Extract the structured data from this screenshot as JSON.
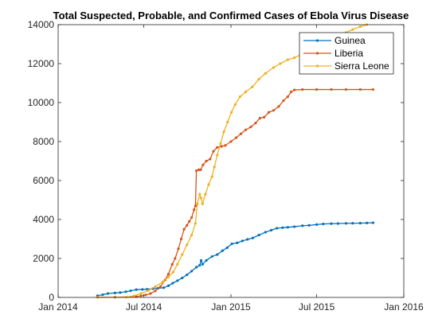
{
  "chart_data": {
    "type": "line",
    "title": "Total Suspected, Probable, and Confirmed Cases of Ebola Virus Disease",
    "xlabel": "",
    "ylabel": "",
    "x_range": [
      "2014-01-01",
      "2016-01-01"
    ],
    "ylim": [
      0,
      14000
    ],
    "x_ticks": [
      {
        "date": "2014-01-01",
        "label": "Jan 2014"
      },
      {
        "date": "2014-07-01",
        "label": "Jul 2014"
      },
      {
        "date": "2015-01-01",
        "label": "Jan 2015"
      },
      {
        "date": "2015-07-01",
        "label": "Jul 2015"
      },
      {
        "date": "2016-01-01",
        "label": "Jan 2016"
      }
    ],
    "y_ticks": [
      0,
      2000,
      4000,
      6000,
      8000,
      10000,
      12000,
      14000
    ],
    "grid": false,
    "legend_position": "top-right",
    "series": [
      {
        "name": "Guinea",
        "color": "#0072BD",
        "points": [
          [
            "2014-03-25",
            86
          ],
          [
            "2014-04-05",
            140
          ],
          [
            "2014-04-16",
            200
          ],
          [
            "2014-05-01",
            230
          ],
          [
            "2014-05-12",
            250
          ],
          [
            "2014-05-24",
            290
          ],
          [
            "2014-06-03",
            340
          ],
          [
            "2014-06-15",
            400
          ],
          [
            "2014-06-28",
            410
          ],
          [
            "2014-07-08",
            420
          ],
          [
            "2014-07-20",
            450
          ],
          [
            "2014-07-31",
            470
          ],
          [
            "2014-08-12",
            500
          ],
          [
            "2014-08-22",
            600
          ],
          [
            "2014-08-31",
            730
          ],
          [
            "2014-09-10",
            860
          ],
          [
            "2014-09-20",
            1000
          ],
          [
            "2014-09-30",
            1160
          ],
          [
            "2014-10-10",
            1350
          ],
          [
            "2014-10-20",
            1550
          ],
          [
            "2014-10-27",
            1650
          ],
          [
            "2014-10-30",
            1900
          ],
          [
            "2014-11-02",
            1700
          ],
          [
            "2014-11-10",
            1900
          ],
          [
            "2014-11-22",
            2100
          ],
          [
            "2014-12-03",
            2200
          ],
          [
            "2014-12-14",
            2400
          ],
          [
            "2014-12-24",
            2550
          ],
          [
            "2015-01-03",
            2750
          ],
          [
            "2015-01-14",
            2800
          ],
          [
            "2015-01-25",
            2900
          ],
          [
            "2015-02-05",
            2980
          ],
          [
            "2015-02-16",
            3050
          ],
          [
            "2015-03-01",
            3200
          ],
          [
            "2015-03-15",
            3350
          ],
          [
            "2015-03-27",
            3450
          ],
          [
            "2015-04-08",
            3550
          ],
          [
            "2015-04-20",
            3580
          ],
          [
            "2015-05-01",
            3600
          ],
          [
            "2015-05-15",
            3630
          ],
          [
            "2015-06-01",
            3680
          ],
          [
            "2015-06-15",
            3700
          ],
          [
            "2015-07-01",
            3740
          ],
          [
            "2015-07-15",
            3770
          ],
          [
            "2015-08-01",
            3785
          ],
          [
            "2015-08-15",
            3790
          ],
          [
            "2015-09-01",
            3800
          ],
          [
            "2015-09-15",
            3805
          ],
          [
            "2015-10-01",
            3810
          ],
          [
            "2015-10-15",
            3820
          ],
          [
            "2015-10-28",
            3830
          ]
        ]
      },
      {
        "name": "Liberia",
        "color": "#D95319",
        "points": [
          [
            "2014-03-25",
            8
          ],
          [
            "2014-05-01",
            10
          ],
          [
            "2014-06-15",
            40
          ],
          [
            "2014-06-25",
            80
          ],
          [
            "2014-07-05",
            130
          ],
          [
            "2014-07-15",
            200
          ],
          [
            "2014-07-25",
            330
          ],
          [
            "2014-08-05",
            550
          ],
          [
            "2014-08-15",
            900
          ],
          [
            "2014-08-22",
            1200
          ],
          [
            "2014-08-30",
            1700
          ],
          [
            "2014-09-05",
            2000
          ],
          [
            "2014-09-12",
            2500
          ],
          [
            "2014-09-18",
            3000
          ],
          [
            "2014-09-24",
            3500
          ],
          [
            "2014-09-30",
            3700
          ],
          [
            "2014-10-05",
            3900
          ],
          [
            "2014-10-10",
            4100
          ],
          [
            "2014-10-15",
            4500
          ],
          [
            "2014-10-18",
            4700
          ],
          [
            "2014-10-20",
            6500
          ],
          [
            "2014-10-25",
            6550
          ],
          [
            "2014-10-29",
            6550
          ],
          [
            "2014-11-03",
            6800
          ],
          [
            "2014-11-10",
            7000
          ],
          [
            "2014-11-18",
            7100
          ],
          [
            "2014-11-25",
            7500
          ],
          [
            "2014-12-03",
            7700
          ],
          [
            "2014-12-12",
            7750
          ],
          [
            "2014-12-20",
            7800
          ],
          [
            "2015-01-01",
            8000
          ],
          [
            "2015-01-12",
            8200
          ],
          [
            "2015-01-22",
            8400
          ],
          [
            "2015-02-01",
            8600
          ],
          [
            "2015-02-12",
            8750
          ],
          [
            "2015-02-22",
            8950
          ],
          [
            "2015-03-03",
            9200
          ],
          [
            "2015-03-12",
            9250
          ],
          [
            "2015-03-22",
            9500
          ],
          [
            "2015-04-01",
            9600
          ],
          [
            "2015-04-12",
            9800
          ],
          [
            "2015-04-22",
            10100
          ],
          [
            "2015-05-01",
            10300
          ],
          [
            "2015-05-08",
            10550
          ],
          [
            "2015-05-15",
            10650
          ],
          [
            "2015-06-01",
            10670
          ],
          [
            "2015-07-01",
            10670
          ],
          [
            "2015-08-01",
            10672
          ],
          [
            "2015-09-01",
            10672
          ],
          [
            "2015-10-01",
            10672
          ],
          [
            "2015-10-28",
            10672
          ]
        ]
      },
      {
        "name": "Sierra Leone",
        "color": "#EDB120",
        "points": [
          [
            "2014-03-25",
            0
          ],
          [
            "2014-05-25",
            16
          ],
          [
            "2014-06-10",
            80
          ],
          [
            "2014-06-25",
            200
          ],
          [
            "2014-07-10",
            350
          ],
          [
            "2014-07-25",
            550
          ],
          [
            "2014-08-10",
            800
          ],
          [
            "2014-08-22",
            1050
          ],
          [
            "2014-09-01",
            1300
          ],
          [
            "2014-09-10",
            1700
          ],
          [
            "2014-09-20",
            2200
          ],
          [
            "2014-09-30",
            2700
          ],
          [
            "2014-10-10",
            3200
          ],
          [
            "2014-10-18",
            3800
          ],
          [
            "2014-10-22",
            4800
          ],
          [
            "2014-10-27",
            5300
          ],
          [
            "2014-10-30",
            5100
          ],
          [
            "2014-11-02",
            4800
          ],
          [
            "2014-11-08",
            5300
          ],
          [
            "2014-11-15",
            5800
          ],
          [
            "2014-11-22",
            6200
          ],
          [
            "2014-11-27",
            6700
          ],
          [
            "2014-12-03",
            7300
          ],
          [
            "2014-12-10",
            7900
          ],
          [
            "2014-12-17",
            8500
          ],
          [
            "2014-12-25",
            9000
          ],
          [
            "2015-01-02",
            9500
          ],
          [
            "2015-01-10",
            9900
          ],
          [
            "2015-01-20",
            10300
          ],
          [
            "2015-02-01",
            10550
          ],
          [
            "2015-02-15",
            10800
          ],
          [
            "2015-03-01",
            11200
          ],
          [
            "2015-03-15",
            11500
          ],
          [
            "2015-04-01",
            11800
          ],
          [
            "2015-04-15",
            12000
          ],
          [
            "2015-05-01",
            12200
          ],
          [
            "2015-05-15",
            12300
          ],
          [
            "2015-06-01",
            12500
          ],
          [
            "2015-06-15",
            12650
          ],
          [
            "2015-07-01",
            12900
          ],
          [
            "2015-07-15",
            13100
          ],
          [
            "2015-08-01",
            13300
          ],
          [
            "2015-08-15",
            13450
          ],
          [
            "2015-09-01",
            13600
          ],
          [
            "2015-09-15",
            13750
          ],
          [
            "2015-10-01",
            13900
          ],
          [
            "2015-10-15",
            14000
          ]
        ]
      }
    ]
  }
}
